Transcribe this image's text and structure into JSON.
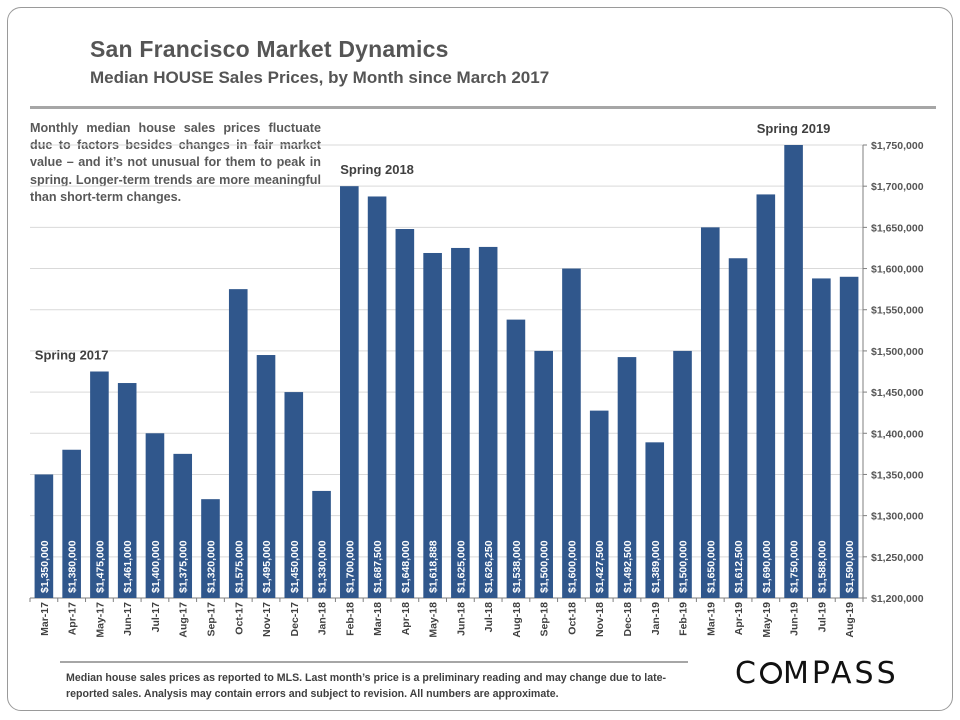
{
  "header": {
    "title": "San Francisco Market Dynamics",
    "subtitle": "Median HOUSE Sales Prices, by Month since March 2017"
  },
  "note": "Monthly median house sales prices fluctuate due to factors besides changes in fair market value – and it’s not unusual for them to peak in spring. Longer-term trends are more meaningful than short-term changes.",
  "footer": {
    "text": "Median house sales prices as reported to MLS. Last month’s price is a preliminary reading and may change due to late-reported sales. Analysis may contain errors and subject to revision. All numbers are approximate.",
    "logo": "COMPASS"
  },
  "colors": {
    "bar": "#30578c",
    "text": "#555555"
  },
  "chart_data": {
    "type": "bar",
    "title": "Median HOUSE Sales Prices, by Month since March 2017",
    "categories": [
      "Mar-17",
      "Apr-17",
      "May-17",
      "Jun-17",
      "Jul-17",
      "Aug-17",
      "Sep-17",
      "Oct-17",
      "Nov-17",
      "Dec-17",
      "Jan-18",
      "Feb-18",
      "Mar-18",
      "Apr-18",
      "May-18",
      "Jun-18",
      "Jul-18",
      "Aug-18",
      "Sep-18",
      "Oct-18",
      "Nov-18",
      "Dec-18",
      "Jan-19",
      "Feb-19",
      "Mar-19",
      "Apr-19",
      "May-19",
      "Jun-19",
      "Jul-19",
      "Aug-19"
    ],
    "values": [
      1350000,
      1380000,
      1475000,
      1461000,
      1400000,
      1375000,
      1320000,
      1575000,
      1495000,
      1450000,
      1330000,
      1700000,
      1687500,
      1648000,
      1618888,
      1625000,
      1626250,
      1538000,
      1500000,
      1600000,
      1427500,
      1492500,
      1389000,
      1500000,
      1650000,
      1612500,
      1690000,
      1750000,
      1588000,
      1590000
    ],
    "labels": [
      "$1,350,000",
      "$1,380,000",
      "$1,475,000",
      "$1,461,000",
      "$1,400,000",
      "$1,375,000",
      "$1,320,000",
      "$1,575,000",
      "$1,495,000",
      "$1,450,000",
      "$1,330,000",
      "$1,700,000",
      "$1,687,500",
      "$1,648,000",
      "$1,618,888",
      "$1,625,000",
      "$1,626,250",
      "$1,538,000",
      "$1,500,000",
      "$1,600,000",
      "$1,427,500",
      "$1,492,500",
      "$1,389,000",
      "$1,500,000",
      "$1,650,000",
      "$1,612,500",
      "$1,690,000",
      "$1,750,000",
      "$1,588,000",
      "$1,590,000"
    ],
    "ylim": [
      1200000,
      1750000
    ],
    "yticks": [
      1200000,
      1250000,
      1300000,
      1350000,
      1400000,
      1450000,
      1500000,
      1550000,
      1600000,
      1650000,
      1700000,
      1750000
    ],
    "ytick_labels": [
      "$1,200,000",
      "$1,250,000",
      "$1,300,000",
      "$1,350,000",
      "$1,400,000",
      "$1,450,000",
      "$1,500,000",
      "$1,550,000",
      "$1,600,000",
      "$1,650,000",
      "$1,700,000",
      "$1,750,000"
    ],
    "y_axis_side": "right",
    "grid": true,
    "annotations": [
      {
        "text": "Spring 2017",
        "category": "Apr-17"
      },
      {
        "text": "Spring 2018",
        "category": "Mar-18"
      },
      {
        "text": "Spring 2019",
        "category": "Jun-19"
      }
    ],
    "xlabel": "",
    "ylabel": ""
  }
}
